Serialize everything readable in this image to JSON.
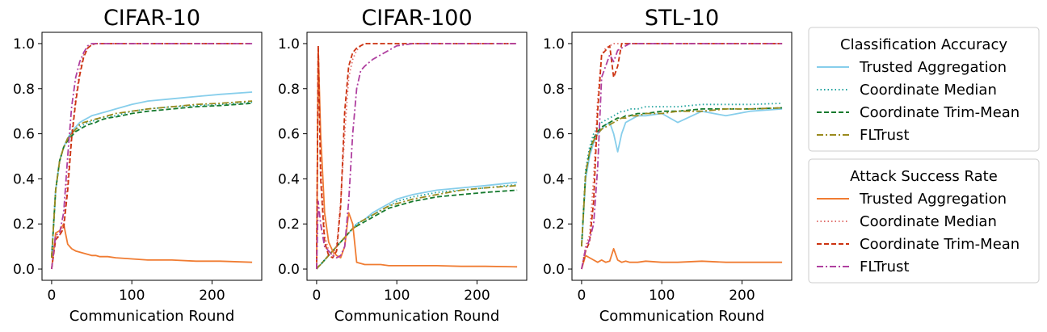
{
  "chart_data": [
    {
      "type": "line",
      "title": "CIFAR-10",
      "xlabel": "Communication Round",
      "ylabel": "",
      "xlim": [
        -12,
        262
      ],
      "ylim": [
        -0.05,
        1.05
      ],
      "xticks": [
        0,
        100,
        200
      ],
      "yticks": [
        0.0,
        0.2,
        0.4,
        0.6,
        0.8,
        1.0
      ],
      "x": [
        0,
        5,
        10,
        15,
        20,
        25,
        30,
        35,
        40,
        45,
        50,
        55,
        60,
        70,
        80,
        100,
        120,
        150,
        180,
        210,
        250
      ],
      "series": [
        {
          "group": "Classification Accuracy",
          "name": "Trusted Aggregation",
          "values": [
            0.05,
            0.35,
            0.48,
            0.54,
            0.58,
            0.61,
            0.63,
            0.65,
            0.66,
            0.67,
            0.68,
            0.685,
            0.69,
            0.7,
            0.71,
            0.73,
            0.745,
            0.755,
            0.765,
            0.775,
            0.785
          ]
        },
        {
          "group": "Classification Accuracy",
          "name": "Coordinate Median",
          "values": [
            0.05,
            0.35,
            0.48,
            0.54,
            0.58,
            0.6,
            0.62,
            0.63,
            0.64,
            0.65,
            0.655,
            0.66,
            0.67,
            0.675,
            0.68,
            0.7,
            0.71,
            0.72,
            0.725,
            0.73,
            0.74
          ]
        },
        {
          "group": "Classification Accuracy",
          "name": "Coordinate Trim-Mean",
          "values": [
            0.05,
            0.35,
            0.48,
            0.54,
            0.57,
            0.59,
            0.61,
            0.62,
            0.63,
            0.64,
            0.645,
            0.65,
            0.66,
            0.67,
            0.675,
            0.69,
            0.7,
            0.71,
            0.72,
            0.725,
            0.735
          ]
        },
        {
          "group": "Classification Accuracy",
          "name": "FLTrust",
          "values": [
            0.05,
            0.35,
            0.48,
            0.54,
            0.58,
            0.6,
            0.62,
            0.64,
            0.65,
            0.655,
            0.66,
            0.665,
            0.67,
            0.68,
            0.69,
            0.7,
            0.71,
            0.72,
            0.73,
            0.735,
            0.745
          ]
        },
        {
          "group": "Attack Success Rate",
          "name": "Trusted Aggregation",
          "values": [
            0.0,
            0.16,
            0.17,
            0.2,
            0.11,
            0.09,
            0.08,
            0.075,
            0.07,
            0.065,
            0.06,
            0.06,
            0.055,
            0.055,
            0.05,
            0.045,
            0.04,
            0.04,
            0.035,
            0.035,
            0.03
          ]
        },
        {
          "group": "Attack Success Rate",
          "name": "Coordinate Median",
          "values": [
            0.0,
            0.14,
            0.15,
            0.2,
            0.4,
            0.6,
            0.76,
            0.88,
            0.95,
            0.98,
            0.995,
            1.0,
            1.0,
            1.0,
            1.0,
            1.0,
            1.0,
            1.0,
            1.0,
            1.0,
            1.0
          ]
        },
        {
          "group": "Attack Success Rate",
          "name": "Coordinate Trim-Mean",
          "values": [
            0.0,
            0.13,
            0.15,
            0.18,
            0.35,
            0.58,
            0.74,
            0.86,
            0.94,
            0.98,
            0.995,
            1.0,
            1.0,
            1.0,
            1.0,
            1.0,
            1.0,
            1.0,
            1.0,
            1.0,
            1.0
          ]
        },
        {
          "group": "Attack Success Rate",
          "name": "FLTrust",
          "values": [
            0.0,
            0.15,
            0.16,
            0.25,
            0.5,
            0.72,
            0.85,
            0.92,
            0.96,
            0.99,
            1.0,
            1.0,
            1.0,
            1.0,
            1.0,
            1.0,
            1.0,
            1.0,
            1.0,
            1.0,
            1.0
          ]
        }
      ]
    },
    {
      "type": "line",
      "title": "CIFAR-100",
      "xlabel": "Communication Round",
      "ylabel": "",
      "xlim": [
        -12,
        262
      ],
      "ylim": [
        -0.05,
        1.05
      ],
      "xticks": [
        0,
        100,
        200
      ],
      "yticks": [
        0.0,
        0.2,
        0.4,
        0.6,
        0.8,
        1.0
      ],
      "x": [
        0,
        2,
        5,
        10,
        15,
        20,
        25,
        30,
        35,
        40,
        45,
        50,
        55,
        60,
        70,
        80,
        90,
        100,
        120,
        150,
        180,
        210,
        250
      ],
      "series": [
        {
          "group": "Classification Accuracy",
          "name": "Trusted Aggregation",
          "values": [
            0.0,
            0.01,
            0.02,
            0.04,
            0.06,
            0.08,
            0.1,
            0.12,
            0.14,
            0.16,
            0.18,
            0.2,
            0.21,
            0.22,
            0.25,
            0.27,
            0.29,
            0.31,
            0.33,
            0.35,
            0.36,
            0.37,
            0.385
          ]
        },
        {
          "group": "Classification Accuracy",
          "name": "Coordinate Median",
          "values": [
            0.0,
            0.01,
            0.02,
            0.04,
            0.06,
            0.08,
            0.1,
            0.12,
            0.14,
            0.16,
            0.18,
            0.2,
            0.21,
            0.22,
            0.24,
            0.26,
            0.28,
            0.3,
            0.32,
            0.34,
            0.35,
            0.36,
            0.375
          ]
        },
        {
          "group": "Classification Accuracy",
          "name": "Coordinate Trim-Mean",
          "values": [
            0.0,
            0.01,
            0.02,
            0.04,
            0.06,
            0.08,
            0.1,
            0.12,
            0.14,
            0.16,
            0.18,
            0.19,
            0.2,
            0.21,
            0.23,
            0.25,
            0.27,
            0.28,
            0.3,
            0.32,
            0.33,
            0.34,
            0.35
          ]
        },
        {
          "group": "Classification Accuracy",
          "name": "FLTrust",
          "values": [
            0.0,
            0.01,
            0.02,
            0.04,
            0.06,
            0.08,
            0.1,
            0.12,
            0.14,
            0.16,
            0.18,
            0.19,
            0.21,
            0.22,
            0.24,
            0.26,
            0.28,
            0.29,
            0.31,
            0.33,
            0.35,
            0.36,
            0.37
          ]
        },
        {
          "group": "Attack Success Rate",
          "name": "Trusted Aggregation",
          "values": [
            0.0,
            0.98,
            0.6,
            0.25,
            0.12,
            0.08,
            0.06,
            0.05,
            0.1,
            0.25,
            0.2,
            0.03,
            0.025,
            0.02,
            0.02,
            0.02,
            0.015,
            0.015,
            0.015,
            0.015,
            0.012,
            0.012,
            0.01
          ]
        },
        {
          "group": "Attack Success Rate",
          "name": "Coordinate Median",
          "values": [
            0.0,
            0.99,
            0.5,
            0.15,
            0.08,
            0.06,
            0.1,
            0.3,
            0.6,
            0.85,
            0.93,
            0.97,
            0.99,
            1.0,
            1.0,
            1.0,
            1.0,
            1.0,
            1.0,
            1.0,
            1.0,
            1.0,
            1.0
          ]
        },
        {
          "group": "Attack Success Rate",
          "name": "Coordinate Trim-Mean",
          "values": [
            0.0,
            0.99,
            0.4,
            0.12,
            0.06,
            0.05,
            0.08,
            0.28,
            0.7,
            0.9,
            0.96,
            0.98,
            0.99,
            1.0,
            1.0,
            1.0,
            1.0,
            1.0,
            1.0,
            1.0,
            1.0,
            1.0,
            1.0
          ]
        },
        {
          "group": "Attack Success Rate",
          "name": "FLTrust",
          "values": [
            0.0,
            0.3,
            0.2,
            0.1,
            0.08,
            0.06,
            0.05,
            0.06,
            0.1,
            0.3,
            0.6,
            0.8,
            0.88,
            0.9,
            0.93,
            0.95,
            0.97,
            0.99,
            1.0,
            1.0,
            1.0,
            1.0,
            1.0
          ]
        }
      ]
    },
    {
      "type": "line",
      "title": "STL-10",
      "xlabel": "Communication Round",
      "ylabel": "",
      "xlim": [
        -12,
        262
      ],
      "ylim": [
        -0.05,
        1.05
      ],
      "xticks": [
        0,
        100,
        200
      ],
      "yticks": [
        0.0,
        0.2,
        0.4,
        0.6,
        0.8,
        1.0
      ],
      "x": [
        0,
        5,
        10,
        15,
        20,
        25,
        30,
        35,
        40,
        45,
        50,
        55,
        60,
        70,
        80,
        100,
        120,
        150,
        180,
        210,
        250
      ],
      "series": [
        {
          "group": "Classification Accuracy",
          "name": "Trusted Aggregation",
          "values": [
            0.1,
            0.4,
            0.5,
            0.56,
            0.6,
            0.62,
            0.64,
            0.65,
            0.6,
            0.52,
            0.6,
            0.65,
            0.66,
            0.68,
            0.68,
            0.69,
            0.65,
            0.7,
            0.68,
            0.7,
            0.71
          ]
        },
        {
          "group": "Classification Accuracy",
          "name": "Coordinate Median",
          "values": [
            0.1,
            0.44,
            0.54,
            0.6,
            0.63,
            0.65,
            0.66,
            0.67,
            0.68,
            0.69,
            0.7,
            0.7,
            0.71,
            0.71,
            0.72,
            0.72,
            0.72,
            0.73,
            0.73,
            0.73,
            0.735
          ]
        },
        {
          "group": "Classification Accuracy",
          "name": "Coordinate Trim-Mean",
          "values": [
            0.1,
            0.42,
            0.52,
            0.58,
            0.61,
            0.63,
            0.64,
            0.65,
            0.66,
            0.67,
            0.67,
            0.68,
            0.68,
            0.69,
            0.69,
            0.7,
            0.7,
            0.71,
            0.71,
            0.71,
            0.715
          ]
        },
        {
          "group": "Classification Accuracy",
          "name": "FLTrust",
          "values": [
            0.1,
            0.42,
            0.52,
            0.57,
            0.6,
            0.62,
            0.63,
            0.64,
            0.65,
            0.66,
            0.67,
            0.67,
            0.68,
            0.68,
            0.69,
            0.69,
            0.7,
            0.7,
            0.71,
            0.71,
            0.715
          ]
        },
        {
          "group": "Attack Success Rate",
          "name": "Trusted Aggregation",
          "values": [
            0.0,
            0.06,
            0.05,
            0.04,
            0.03,
            0.04,
            0.03,
            0.035,
            0.09,
            0.04,
            0.03,
            0.035,
            0.03,
            0.03,
            0.035,
            0.03,
            0.03,
            0.035,
            0.03,
            0.03,
            0.03
          ]
        },
        {
          "group": "Attack Success Rate",
          "name": "Coordinate Median",
          "values": [
            0.0,
            0.1,
            0.15,
            0.4,
            0.75,
            0.95,
            0.98,
            0.99,
            1.0,
            1.0,
            1.0,
            1.0,
            1.0,
            1.0,
            1.0,
            1.0,
            1.0,
            1.0,
            1.0,
            1.0,
            1.0
          ]
        },
        {
          "group": "Attack Success Rate",
          "name": "Coordinate Trim-Mean",
          "values": [
            0.0,
            0.08,
            0.12,
            0.3,
            0.7,
            0.95,
            0.97,
            0.99,
            0.85,
            0.9,
            1.0,
            1.0,
            1.0,
            1.0,
            1.0,
            1.0,
            1.0,
            1.0,
            1.0,
            1.0,
            1.0
          ]
        },
        {
          "group": "Attack Success Rate",
          "name": "FLTrust",
          "values": [
            0.0,
            0.09,
            0.13,
            0.2,
            0.45,
            0.85,
            0.9,
            0.95,
            0.92,
            0.97,
            0.98,
            0.99,
            1.0,
            1.0,
            1.0,
            1.0,
            1.0,
            1.0,
            1.0,
            1.0,
            1.0
          ]
        }
      ]
    }
  ],
  "legends": [
    {
      "title": "Classification Accuracy",
      "entries": [
        {
          "label": "Trusted Aggregation",
          "color": "#87ceeb",
          "dash": "solid"
        },
        {
          "label": "Coordinate Median",
          "color": "#20a39e",
          "dash": "dotted"
        },
        {
          "label": "Coordinate Trim-Mean",
          "color": "#167a2e",
          "dash": "dashed"
        },
        {
          "label": "FLTrust",
          "color": "#9a8a1e",
          "dash": "dashdot"
        }
      ]
    },
    {
      "title": "Attack Success Rate",
      "entries": [
        {
          "label": "Trusted Aggregation",
          "color": "#f07c32",
          "dash": "solid"
        },
        {
          "label": "Coordinate Median",
          "color": "#e0706e",
          "dash": "dotted"
        },
        {
          "label": "Coordinate Trim-Mean",
          "color": "#cc3311",
          "dash": "dashed"
        },
        {
          "label": "FLTrust",
          "color": "#b040a0",
          "dash": "dashdot"
        }
      ]
    }
  ]
}
